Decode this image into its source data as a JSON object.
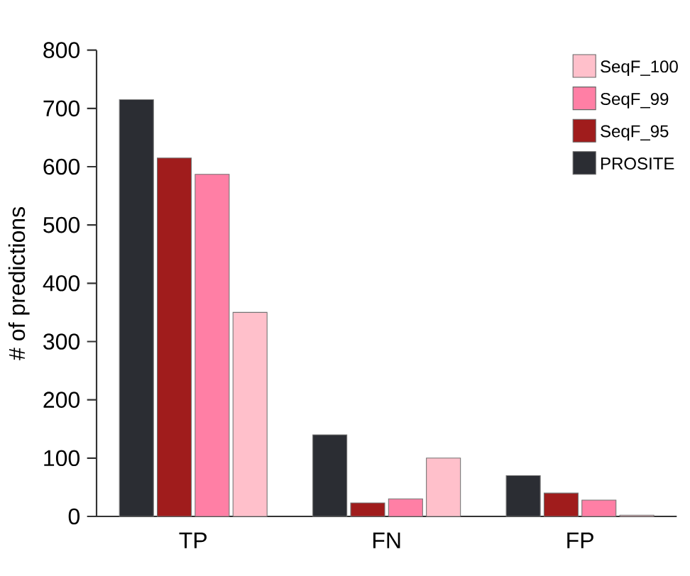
{
  "chart_data": {
    "type": "bar",
    "ylabel": "# of predictions",
    "categories": [
      "TP",
      "FN",
      "FP"
    ],
    "series": [
      {
        "name": "PROSITE",
        "color": "#2b2d33",
        "values": [
          715,
          140,
          70
        ]
      },
      {
        "name": "SeqF_95",
        "color": "#a01c1c",
        "values": [
          615,
          23,
          40
        ]
      },
      {
        "name": "SeqF_99",
        "color": "#ff7fa5",
        "values": [
          587,
          30,
          28
        ]
      },
      {
        "name": "SeqF_100",
        "color": "#ffc0cb",
        "values": [
          350,
          100,
          2
        ]
      }
    ],
    "ylim": [
      0,
      800
    ],
    "yticks": [
      0,
      100,
      200,
      300,
      400,
      500,
      600,
      700,
      800
    ],
    "grid": false,
    "legend": "top right"
  }
}
